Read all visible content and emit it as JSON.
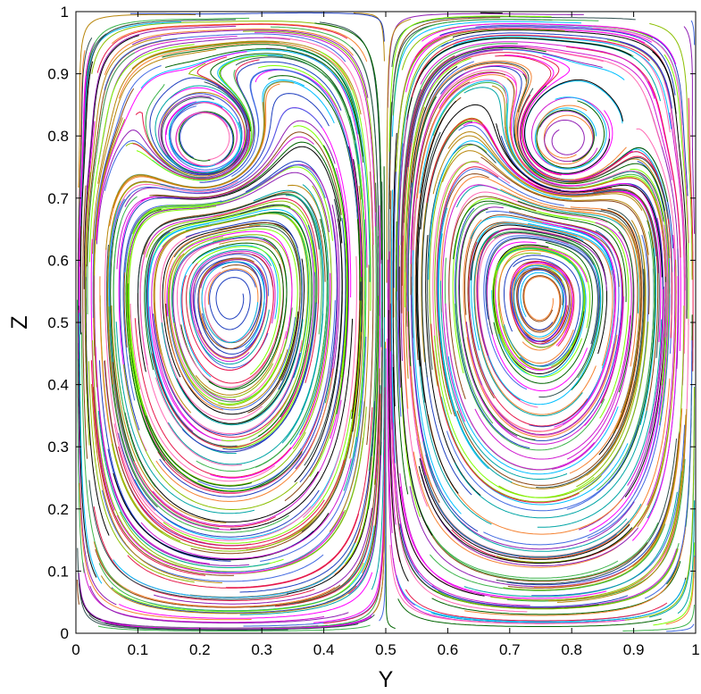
{
  "chart_data": {
    "type": "line",
    "subtype": "streamline plot",
    "title": "",
    "xlabel": "Y",
    "ylabel": "Z",
    "xlim": [
      0,
      1
    ],
    "ylim": [
      0,
      1
    ],
    "grid": false,
    "legend": "none",
    "xticks": [
      "0",
      "0.1",
      "0.2",
      "0.3",
      "0.4",
      "0.5",
      "0.6",
      "0.7",
      "0.8",
      "0.9",
      "1"
    ],
    "yticks": [
      "0",
      "0.1",
      "0.2",
      "0.3",
      "0.4",
      "0.5",
      "0.6",
      "0.7",
      "0.8",
      "0.9",
      "1"
    ],
    "flow_features": {
      "symmetry_axis_y": 0.5,
      "stagnation_points": [
        [
          0.5,
          1.0
        ],
        [
          0.5,
          0.0
        ]
      ],
      "vortex_centres": [
        [
          0.22,
          0.77
        ],
        [
          0.78,
          0.77
        ]
      ],
      "large_cells": [
        {
          "y_range": [
            0.0,
            0.5
          ],
          "rotation": "counterclockwise"
        },
        {
          "y_range": [
            0.5,
            1.0
          ],
          "rotation": "clockwise"
        }
      ]
    },
    "series_palette": [
      "#e6194b",
      "#3cb44b",
      "#1f3fbf",
      "#f58231",
      "#911eb4",
      "#00a5a5",
      "#d019d0",
      "#8bbf00",
      "#000000",
      "#8b4513",
      "#00bfff",
      "#7fff00",
      "#ff00ff",
      "#006400",
      "#b8860b",
      "#2f4f4f",
      "#ff69b4",
      "#4169e1"
    ]
  }
}
